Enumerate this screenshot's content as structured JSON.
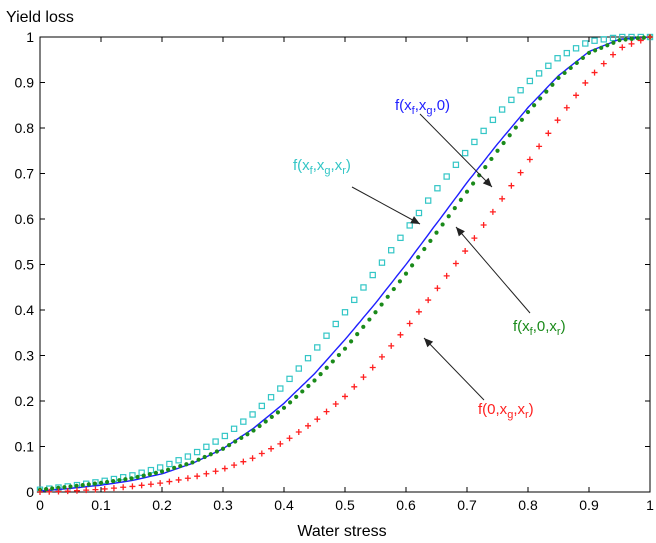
{
  "chart_data": {
    "type": "line",
    "title": "",
    "xlabel": "Water stress",
    "ylabel": "Yield loss",
    "xlim": [
      0,
      1
    ],
    "ylim": [
      0,
      1
    ],
    "grid": false,
    "xticks": [
      "0",
      "0.1",
      "0.2",
      "0.3",
      "0.4",
      "0.5",
      "0.6",
      "0.7",
      "0.8",
      "0.9",
      "1"
    ],
    "yticks": [
      "0",
      "0.1",
      "0.2",
      "0.3",
      "0.4",
      "0.5",
      "0.6",
      "0.7",
      "0.8",
      "0.9",
      "1"
    ],
    "x": [
      0,
      0.05,
      0.1,
      0.15,
      0.2,
      0.25,
      0.3,
      0.35,
      0.4,
      0.45,
      0.5,
      0.55,
      0.6,
      0.65,
      0.7,
      0.75,
      0.8,
      0.85,
      0.9,
      0.95,
      1
    ],
    "series": [
      {
        "name": "f(xf,xg,xr)",
        "label_main": "f(x",
        "label_sub1": "f",
        "label_mid1": ",x",
        "label_sub2": "g",
        "label_mid2": ",x",
        "label_sub3": "r",
        "label_end": ")",
        "color": "#33c6c6",
        "marker": "square",
        "values": [
          0.005,
          0.013,
          0.023,
          0.036,
          0.055,
          0.082,
          0.12,
          0.172,
          0.235,
          0.31,
          0.395,
          0.485,
          0.575,
          0.665,
          0.75,
          0.83,
          0.9,
          0.955,
          0.99,
          1.0,
          1.0
        ]
      },
      {
        "name": "f(xf,xg,0)",
        "label_main": "f(x",
        "label_sub1": "f",
        "label_mid1": ",x",
        "label_sub2": "g",
        "label_end": ",0)",
        "color": "#1f1fff",
        "marker": "line",
        "values": [
          0.002,
          0.008,
          0.015,
          0.025,
          0.04,
          0.063,
          0.095,
          0.14,
          0.195,
          0.26,
          0.335,
          0.415,
          0.5,
          0.59,
          0.68,
          0.765,
          0.845,
          0.915,
          0.968,
          0.995,
          1.0
        ]
      },
      {
        "name": "f(xf,0,xr)",
        "label_main": "f(x",
        "label_sub1": "f",
        "label_mid1": ",0,x",
        "label_sub2": "r",
        "label_end": ")",
        "color": "#1a8a1a",
        "marker": "dot",
        "values": [
          0.005,
          0.012,
          0.02,
          0.03,
          0.045,
          0.065,
          0.095,
          0.135,
          0.185,
          0.245,
          0.315,
          0.395,
          0.48,
          0.57,
          0.66,
          0.75,
          0.835,
          0.91,
          0.965,
          0.993,
          1.0
        ]
      },
      {
        "name": "f(0,xg,xr)",
        "label_main": "f(0,x",
        "label_sub1": "g",
        "label_mid1": ",x",
        "label_sub2": "r",
        "label_end": ")",
        "color": "#ff2020",
        "marker": "plus",
        "values": [
          0.0,
          0.002,
          0.006,
          0.012,
          0.02,
          0.032,
          0.05,
          0.075,
          0.11,
          0.155,
          0.21,
          0.28,
          0.36,
          0.445,
          0.535,
          0.63,
          0.725,
          0.82,
          0.91,
          0.975,
          1.0
        ]
      }
    ]
  }
}
